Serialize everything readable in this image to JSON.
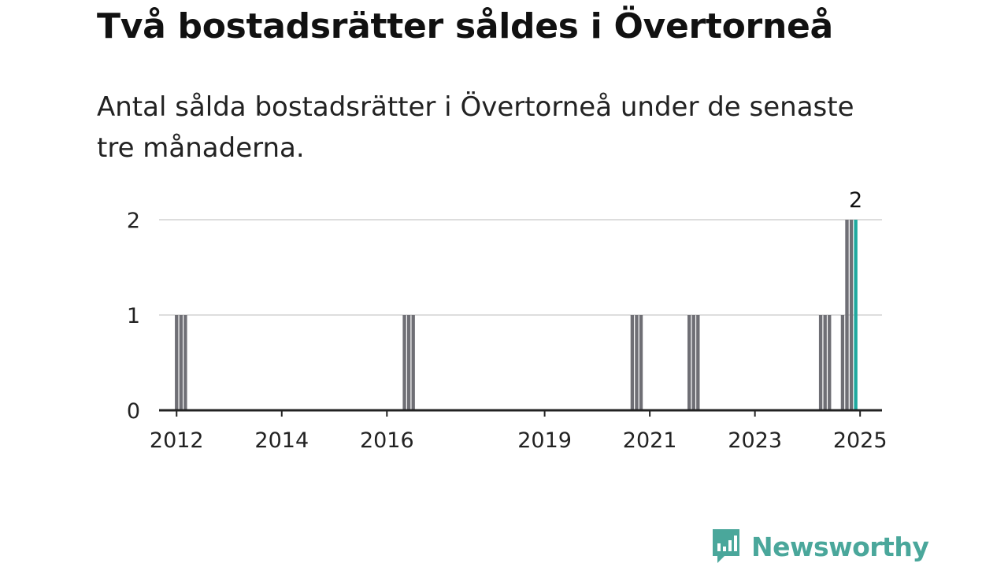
{
  "title": "Två bostadsrätter såldes i Övertorneå",
  "subtitle": "Antal sålda bostadsrätter i Övertorneå under de senaste tre månaderna.",
  "brand": {
    "name": "Newsworthy",
    "color": "#4aa79b",
    "icon": "bar-chart-speech-bubble-icon"
  },
  "colors": {
    "bar": "#6f6f75",
    "highlight": "#1fa89e",
    "grid": "#dddddd",
    "axis": "#222222"
  },
  "chart_data": {
    "type": "bar",
    "title": "",
    "xlabel": "",
    "ylabel": "",
    "ylim": [
      0,
      2
    ],
    "yticks": [
      "0",
      "1",
      "2"
    ],
    "xticks": [
      "2012",
      "2014",
      "2016",
      "2019",
      "2021",
      "2023",
      "2025"
    ],
    "grid": true,
    "x_range": [
      "2011-09",
      "2025-06"
    ],
    "bar_width_months": 1,
    "highlight_label": "2",
    "points": [
      {
        "x": "2012-01",
        "value": 1
      },
      {
        "x": "2012-02",
        "value": 1
      },
      {
        "x": "2012-03",
        "value": 1
      },
      {
        "x": "2016-05",
        "value": 1
      },
      {
        "x": "2016-06",
        "value": 1
      },
      {
        "x": "2016-07",
        "value": 1
      },
      {
        "x": "2020-09",
        "value": 1
      },
      {
        "x": "2020-10",
        "value": 1
      },
      {
        "x": "2020-11",
        "value": 1
      },
      {
        "x": "2021-10",
        "value": 1
      },
      {
        "x": "2021-11",
        "value": 1
      },
      {
        "x": "2021-12",
        "value": 1
      },
      {
        "x": "2024-04",
        "value": 1
      },
      {
        "x": "2024-05",
        "value": 1
      },
      {
        "x": "2024-06",
        "value": 1
      },
      {
        "x": "2024-09",
        "value": 1
      },
      {
        "x": "2024-10",
        "value": 2
      },
      {
        "x": "2024-11",
        "value": 2
      },
      {
        "x": "2024-12",
        "value": 2,
        "highlight": true
      }
    ]
  }
}
